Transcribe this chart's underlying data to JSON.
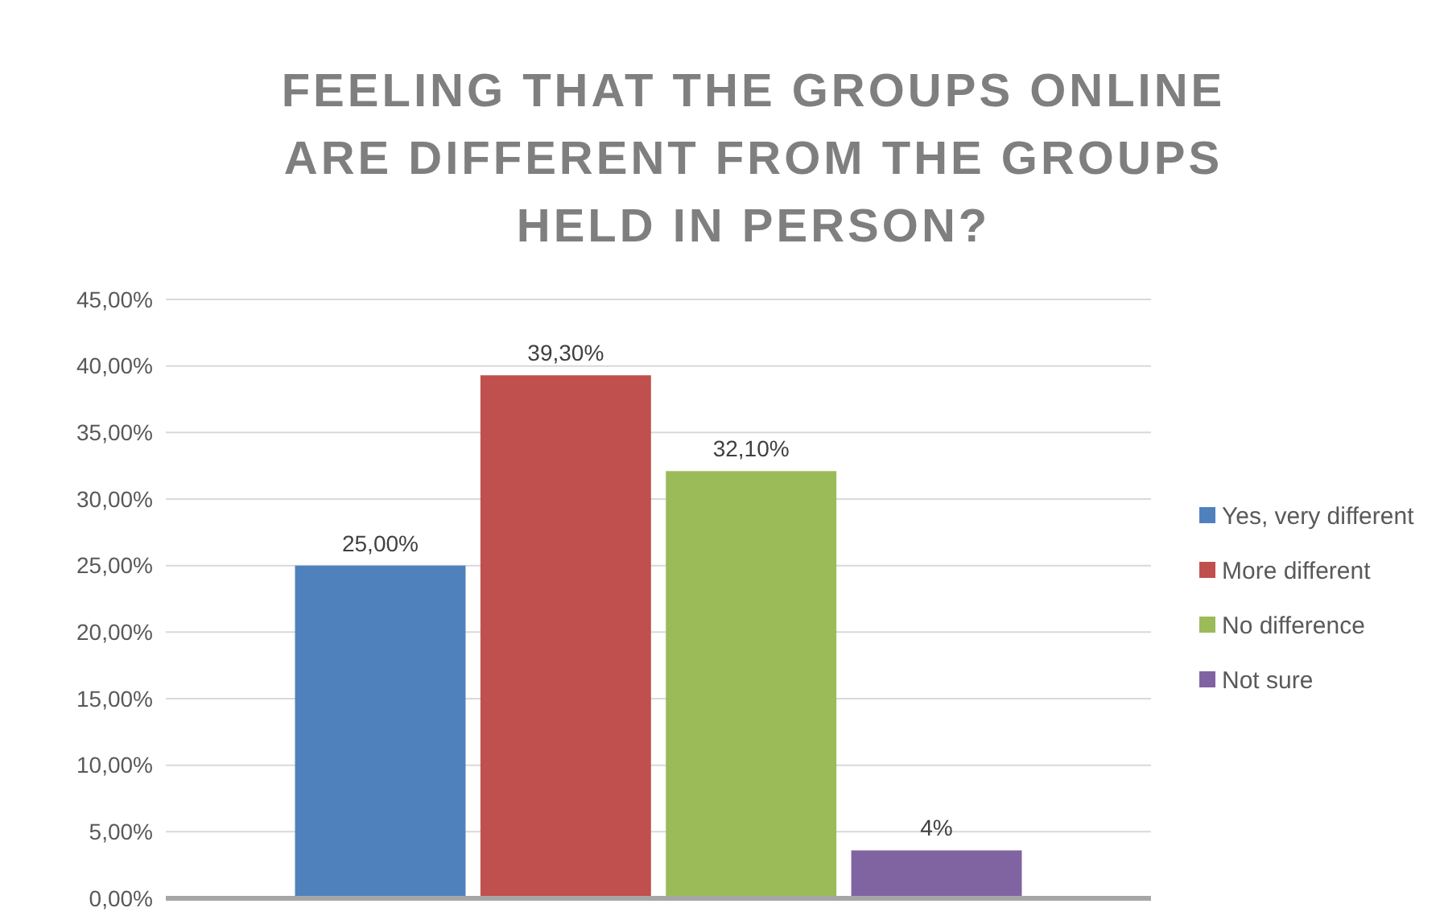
{
  "chart_data": {
    "type": "bar",
    "title": "FEELING THAT THE GROUPS ONLINE ARE DIFFERENT FROM THE GROUPS HELD IN PERSON?",
    "categories": [
      null
    ],
    "series": [
      {
        "name": "Yes, very different",
        "color": "#4f81bd",
        "values": [
          25.0
        ],
        "value_labels": [
          "25,00%"
        ]
      },
      {
        "name": "More different",
        "color": "#c0504d",
        "values": [
          39.3
        ],
        "value_labels": [
          "39,30%"
        ]
      },
      {
        "name": "No difference",
        "color": "#9bbb59",
        "values": [
          32.1
        ],
        "value_labels": [
          "32,10%"
        ]
      },
      {
        "name": "Not sure",
        "color": "#8064a2",
        "values": [
          3.6
        ],
        "value_labels": [
          "4%"
        ]
      }
    ],
    "ylim": [
      0,
      45
    ],
    "yticks": [
      {
        "value": 0,
        "label": "0,00%"
      },
      {
        "value": 5,
        "label": "5,00%"
      },
      {
        "value": 10,
        "label": "10,00%"
      },
      {
        "value": 15,
        "label": "15,00%"
      },
      {
        "value": 20,
        "label": "20,00%"
      },
      {
        "value": 25,
        "label": "25,00%"
      },
      {
        "value": 30,
        "label": "30,00%"
      },
      {
        "value": 35,
        "label": "35,00%"
      },
      {
        "value": 40,
        "label": "40,00%"
      },
      {
        "value": 45,
        "label": "45,00%"
      }
    ],
    "grid": "y",
    "legend": "right"
  }
}
